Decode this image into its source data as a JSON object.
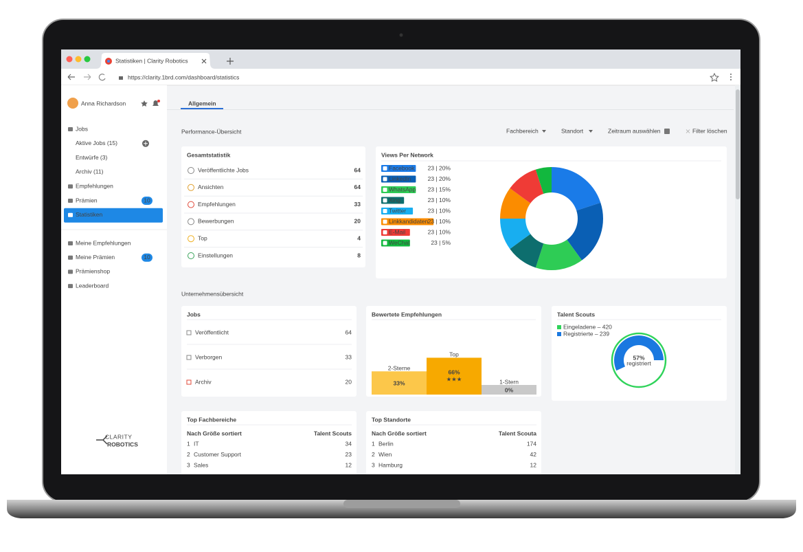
{
  "browser": {
    "tab_title": "Statistiken | Clarity Robotics",
    "url": "https://clarity.1brd.com/dashboard/statistics"
  },
  "sidebar": {
    "user": "Anna Richardson",
    "nav": [
      {
        "label": "Jobs",
        "children": [
          "Aktive Jobs (15)",
          "Entwürfe (3)",
          "Archiv (11)"
        ]
      },
      {
        "label": "Empfehlungen"
      },
      {
        "label": "Prämien",
        "badge": 10
      },
      {
        "label": "Statistiken",
        "active": true
      }
    ],
    "nav2": [
      {
        "label": "Meine Empfehlungen"
      },
      {
        "label": "Meine Prämien",
        "badge": 10
      },
      {
        "label": "Prämienshop"
      },
      {
        "label": "Leaderboard"
      }
    ],
    "logo": [
      "CLARITY",
      "ROBOTICS"
    ]
  },
  "tab": "Allgemein",
  "performance": {
    "title": "Performance-Übersicht",
    "filters": [
      "Fachbereich",
      "Standort",
      "Zeitraum auswählen"
    ],
    "clear": "Filter löschen",
    "stats": {
      "title": "Gesamtstatistik",
      "rows": [
        [
          "Veröffentlichte Jobs",
          64
        ],
        [
          "Ansichten",
          64
        ],
        [
          "Empfehlungen",
          33
        ],
        [
          "Bewerbungen",
          20
        ],
        [
          "Top",
          4
        ],
        [
          "Einstellungen",
          8
        ]
      ]
    }
  },
  "company": {
    "title": "Unternehmensübersicht",
    "jobs": {
      "title": "Jobs",
      "rows": [
        [
          "Veröffentlicht",
          64
        ],
        [
          "Verborgen",
          33
        ],
        [
          "Archiv",
          20
        ]
      ]
    },
    "top_fields": {
      "title": "Top Fachbereiche",
      "columns": [
        "Nach Größe sortiert",
        "Talent Scouts"
      ],
      "rows": [
        [
          1,
          "IT",
          34
        ],
        [
          2,
          "Customer Support",
          23
        ],
        [
          3,
          "Sales",
          12
        ]
      ]
    },
    "top_locations": {
      "title": "Top Standorte",
      "columns": [
        "Nach Größe sortiert",
        "Talent Scouta"
      ],
      "rows": [
        [
          1,
          "Berlin",
          174
        ],
        [
          2,
          "Wien",
          42
        ],
        [
          3,
          "Hamburg",
          12
        ]
      ]
    }
  },
  "chart_data": [
    {
      "type": "pie",
      "title": "Views Per Network",
      "categories": [
        "Facebook",
        "LinkedIn",
        "WhatsApp",
        "Xing",
        "Twitter",
        "Linkkandidaten",
        "E-Mail",
        "WeChat"
      ],
      "values": [
        20,
        20,
        15,
        10,
        10,
        10,
        10,
        5
      ],
      "value_labels": [
        "23 | 20%",
        "23 | 20%",
        "23 | 15%",
        "23 | 10%",
        "23 | 10%",
        "23 | 10%",
        "23 | 10%",
        "23 | 5%"
      ],
      "colors": [
        "#1a7be8",
        "#0a5fb4",
        "#2ecc55",
        "#0d6e6e",
        "#18aef0",
        "#fb8c00",
        "#ef3b36",
        "#12b83e"
      ]
    },
    {
      "type": "bar",
      "title": "Bewertete Empfehlungen",
      "categories": [
        "2-Sterne",
        "Top",
        "1-Stern"
      ],
      "values": [
        33,
        66,
        0
      ],
      "value_labels": [
        "33%",
        "66%",
        "0%"
      ],
      "colors": [
        "#fcc74a",
        "#f7a900",
        "#c9c9c9"
      ],
      "annotation": {
        "text": "★★★",
        "category": "Top"
      }
    },
    {
      "type": "donut",
      "title": "Talent Scouts",
      "series": [
        {
          "label": "Eingeladene – 420",
          "value": 420,
          "color": "#2fd35a"
        },
        {
          "label": "Registrierte – 239",
          "value": 239,
          "color": "#1a78e0"
        }
      ],
      "center": {
        "value": 57,
        "label": "57%"
      },
      "center_text": "registriert"
    }
  ]
}
